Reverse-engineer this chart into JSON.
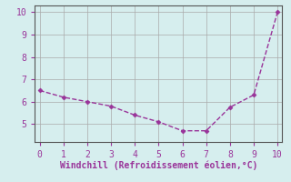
{
  "x": [
    0,
    1,
    2,
    3,
    4,
    5,
    6,
    7,
    8,
    9,
    10
  ],
  "y": [
    6.5,
    6.2,
    6.0,
    5.8,
    5.4,
    5.1,
    4.7,
    4.7,
    5.75,
    6.3,
    10.0
  ],
  "line_color": "#993399",
  "marker": "D",
  "marker_size": 2.5,
  "marker_linewidth": 0.5,
  "xlabel": "Windchill (Refroidissement éolien,°C)",
  "xlim": [
    -0.2,
    10.2
  ],
  "ylim": [
    4.2,
    10.3
  ],
  "xticks": [
    0,
    1,
    2,
    3,
    4,
    5,
    6,
    7,
    8,
    9,
    10
  ],
  "yticks": [
    5,
    6,
    7,
    8,
    9,
    10
  ],
  "background_color": "#d6eeee",
  "grid_color": "#aaaaaa",
  "xlabel_color": "#993399",
  "xlabel_fontsize": 7,
  "tick_color": "#993399",
  "tick_fontsize": 7,
  "spine_color": "#555555",
  "line_width": 1.0
}
